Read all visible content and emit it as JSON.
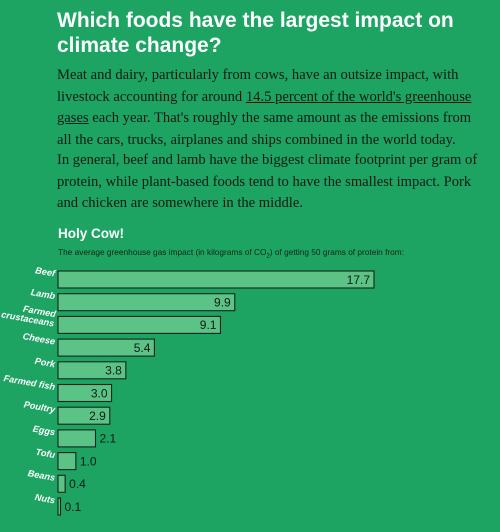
{
  "article": {
    "headline": "Which foods have the largest impact on climate change?",
    "para1_before": "Meat and dairy, particularly from cows, have an outsize impact, with livestock accounting for around ",
    "para1_link": "14.5 percent of the world's greenhouse gases",
    "para1_after": " each year. That's roughly the same amount as the emissions from all the cars, trucks, airplanes and ships combined in the world today.",
    "para2": "In general, beef and lamb have the biggest climate footprint per gram of protein, while plant-based foods tend to have the smallest impact. Pork and chicken are somewhere in the middle."
  },
  "chart_data": {
    "type": "bar",
    "orientation": "horizontal",
    "title": "Holy Cow!",
    "subtitle_before": "The average greenhouse gas impact (in kilograms of CO",
    "subtitle_sub": "2",
    "subtitle_after": ") of getting 50 grams of protein from:",
    "categories": [
      "Beef",
      "Lamb",
      "Farmed crustaceans",
      "Cheese",
      "Pork",
      "Farmed fish",
      "Poultry",
      "Eggs",
      "Tofu",
      "Beans",
      "Nuts"
    ],
    "category_lines": [
      [
        "Beef"
      ],
      [
        "Lamb"
      ],
      [
        "Farmed",
        "crustaceans"
      ],
      [
        "Cheese"
      ],
      [
        "Pork"
      ],
      [
        "Farmed fish"
      ],
      [
        "Poultry"
      ],
      [
        "Eggs"
      ],
      [
        "Tofu"
      ],
      [
        "Beans"
      ],
      [
        "Nuts"
      ]
    ],
    "values": [
      17.7,
      9.9,
      9.1,
      5.4,
      3.8,
      3.0,
      2.9,
      2.1,
      1.0,
      0.4,
      0.1
    ],
    "value_labels": [
      "17.7",
      "9.9",
      "9.1",
      "5.4",
      "3.8",
      "3.0",
      "2.9",
      "2.1",
      "1.0",
      "0.4",
      "0.1"
    ],
    "xlim": [
      0,
      17.7
    ],
    "grid": false,
    "colors": {
      "bar_fill": "#5cc386",
      "bar_stroke": "#17241a",
      "background": "#1da462"
    }
  }
}
